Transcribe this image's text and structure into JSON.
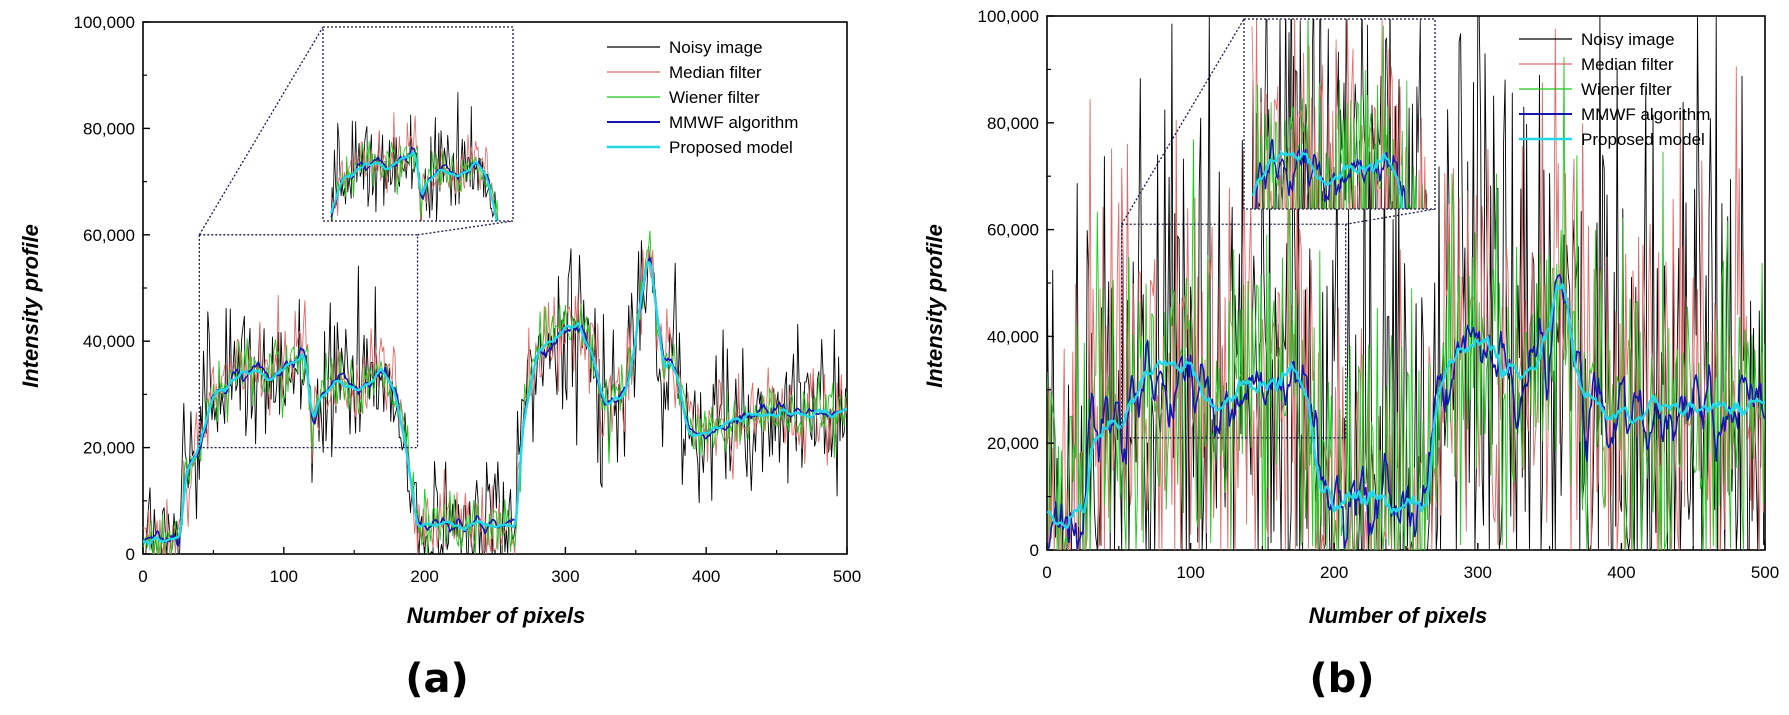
{
  "figure": {
    "panel_labels": [
      "(a)",
      "(b)"
    ]
  },
  "chart_data": [
    {
      "type": "line",
      "panel": "(a)",
      "xlabel": "Number of pixels",
      "ylabel": "Intensity profile",
      "xlim": [
        0,
        500
      ],
      "ylim": [
        0,
        100000
      ],
      "xticks": [
        0,
        100,
        200,
        300,
        400,
        500
      ],
      "yticks": [
        0,
        20000,
        40000,
        60000,
        80000,
        100000
      ],
      "xtick_labels": [
        "0",
        "100",
        "200",
        "300",
        "400",
        "500"
      ],
      "ytick_labels": [
        "0",
        "20,000",
        "40,000",
        "60,000",
        "80,000",
        "100,000"
      ],
      "legend_position": "top-right",
      "zoom_region": {
        "x": [
          40,
          195
        ],
        "y": [
          20000,
          60000
        ]
      },
      "base_profile": {
        "x": [
          0,
          10,
          27,
          30,
          40,
          50,
          60,
          70,
          80,
          90,
          100,
          110,
          115,
          120,
          130,
          140,
          150,
          160,
          170,
          180,
          188,
          195,
          200,
          210,
          220,
          230,
          240,
          250,
          265,
          270,
          280,
          290,
          300,
          310,
          320,
          325,
          330,
          335,
          340,
          345,
          350,
          355,
          360,
          365,
          370,
          375,
          380,
          385,
          390,
          400,
          410,
          420,
          430,
          440,
          450,
          460,
          470,
          480,
          490,
          500
        ],
        "y": [
          2500,
          2500,
          2500,
          15000,
          20000,
          30000,
          31000,
          34000,
          35000,
          33000,
          35000,
          37000,
          38000,
          25000,
          31000,
          33000,
          31000,
          32000,
          35000,
          30000,
          18000,
          5000,
          5500,
          5500,
          5500,
          5500,
          5500,
          5500,
          5500,
          25000,
          38000,
          40000,
          42000,
          43000,
          37000,
          30000,
          28000,
          30000,
          29000,
          33000,
          40000,
          50000,
          57000,
          45000,
          35000,
          37000,
          33000,
          25000,
          22000,
          23000,
          24000,
          25000,
          26000,
          27000,
          26000,
          27000,
          26000,
          27000,
          26000,
          28000
        ]
      },
      "series": [
        {
          "name": "Noisy image",
          "color": "#000000",
          "noise_std": 7000
        },
        {
          "name": "Median filter",
          "color": "#e26a6a",
          "noise_std": 4000
        },
        {
          "name": "Wiener filter",
          "color": "#1ec81e",
          "noise_std": 3000
        },
        {
          "name": "MMWF algorithm",
          "color": "#1515b4",
          "noise_std": 1800
        },
        {
          "name": "Proposed model",
          "color": "#22d8e8",
          "noise_std": 800
        }
      ]
    },
    {
      "type": "line",
      "panel": "(b)",
      "xlabel": "Number of pixels",
      "ylabel": "Intensity profile",
      "xlim": [
        0,
        500
      ],
      "ylim": [
        0,
        100000
      ],
      "xticks": [
        0,
        100,
        200,
        300,
        400,
        500
      ],
      "yticks": [
        0,
        20000,
        40000,
        60000,
        80000,
        100000
      ],
      "xtick_labels": [
        "0",
        "100",
        "200",
        "300",
        "400",
        "500"
      ],
      "ytick_labels": [
        "0",
        "20,000",
        "40,000",
        "60,000",
        "80,000",
        "100,000"
      ],
      "legend_position": "top-right",
      "zoom_region": {
        "x": [
          52,
          208
        ],
        "y": [
          21000,
          61000
        ]
      },
      "base_profile": {
        "x": [
          0,
          10,
          27,
          30,
          40,
          50,
          60,
          70,
          80,
          90,
          100,
          110,
          120,
          130,
          140,
          150,
          160,
          170,
          180,
          190,
          200,
          210,
          220,
          230,
          240,
          250,
          265,
          270,
          280,
          290,
          300,
          310,
          320,
          330,
          340,
          350,
          355,
          360,
          365,
          370,
          380,
          390,
          400,
          410,
          420,
          430,
          440,
          450,
          460,
          470,
          480,
          490,
          500
        ],
        "y": [
          6000,
          6000,
          6000,
          20000,
          22000,
          25000,
          28000,
          33000,
          35000,
          34000,
          35000,
          28000,
          27000,
          30000,
          31000,
          31000,
          32000,
          35000,
          30000,
          12000,
          9000,
          8500,
          9000,
          9000,
          8500,
          9000,
          8500,
          25000,
          35000,
          37000,
          40000,
          37000,
          35000,
          33000,
          35000,
          40000,
          50000,
          50000,
          40000,
          32000,
          28000,
          25000,
          25000,
          26000,
          27000,
          27000,
          26000,
          27000,
          27000,
          26000,
          27000,
          27000,
          27000
        ]
      },
      "series": [
        {
          "name": "Noisy image",
          "color": "#000000",
          "noise_std": 30000
        },
        {
          "name": "Median filter",
          "color": "#e26a6a",
          "noise_std": 22000
        },
        {
          "name": "Wiener filter",
          "color": "#1ec81e",
          "noise_std": 17000
        },
        {
          "name": "MMWF algorithm",
          "color": "#1515b4",
          "noise_std": 9000
        },
        {
          "name": "Proposed model",
          "color": "#22d8e8",
          "noise_std": 2000
        }
      ]
    }
  ]
}
